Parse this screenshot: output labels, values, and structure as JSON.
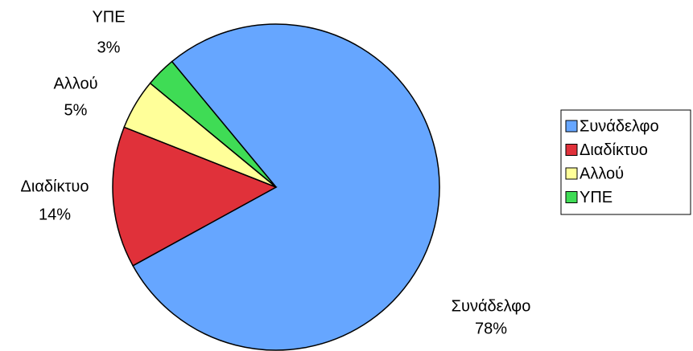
{
  "chart_data": {
    "type": "pie",
    "categories": [
      "Συνάδελφο",
      "Διαδίκτυο",
      "Αλλού",
      "ΥΠΕ"
    ],
    "values": [
      78,
      14,
      5,
      3
    ],
    "value_labels": [
      "78%",
      "14%",
      "5%",
      "3%"
    ],
    "colors": [
      "#66a6ff",
      "#e0313a",
      "#ffff99",
      "#3fdc55"
    ],
    "legend": "right"
  }
}
